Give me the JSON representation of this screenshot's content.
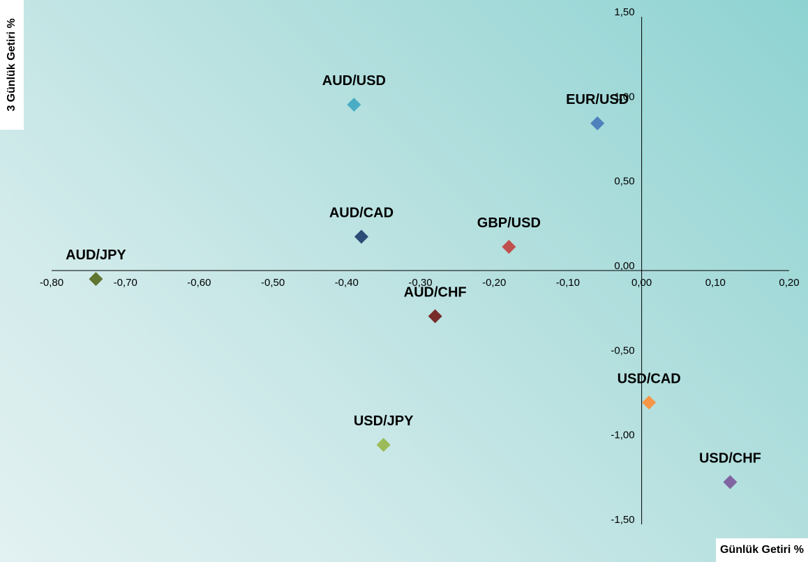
{
  "chart_data": {
    "type": "scatter",
    "xlabel": "Günlük Getiri %",
    "ylabel": "3 Günlük Getiri %",
    "xlim": [
      -0.8,
      0.2
    ],
    "ylim": [
      -1.5,
      1.5
    ],
    "x_ticks": [
      "-0,80",
      "-0,70",
      "-0,60",
      "-0,50",
      "-0,40",
      "-0,30",
      "-0,20",
      "-0,10",
      "0,00",
      "0,10",
      "0,20"
    ],
    "x_tick_values": [
      -0.8,
      -0.7,
      -0.6,
      -0.5,
      -0.4,
      -0.3,
      -0.2,
      -0.1,
      0.0,
      0.1,
      0.2
    ],
    "y_ticks": [
      "1,50",
      "1,00",
      "0,50",
      "0,00",
      "-0,50",
      "-1,00",
      "-1,50"
    ],
    "y_tick_values": [
      1.5,
      1.0,
      0.5,
      0.0,
      -0.5,
      -1.0,
      -1.5
    ],
    "grid": false,
    "legend": "none",
    "points": [
      {
        "label": "AUD/USD",
        "x": -0.39,
        "y": 0.98,
        "color": "#4bacc6"
      },
      {
        "label": "EUR/USD",
        "x": -0.06,
        "y": 0.87,
        "color": "#4f81bd"
      },
      {
        "label": "AUD/CAD",
        "x": -0.38,
        "y": 0.2,
        "color": "#2c4d75"
      },
      {
        "label": "GBP/USD",
        "x": -0.18,
        "y": 0.14,
        "color": "#c0504d"
      },
      {
        "label": "AUD/JPY",
        "x": -0.74,
        "y": -0.05,
        "color": "#5f7530"
      },
      {
        "label": "AUD/CHF",
        "x": -0.28,
        "y": -0.27,
        "color": "#772c2a"
      },
      {
        "label": "USD/CAD",
        "x": 0.01,
        "y": -0.78,
        "color": "#f79646"
      },
      {
        "label": "USD/JPY",
        "x": -0.35,
        "y": -1.03,
        "color": "#9bbb59"
      },
      {
        "label": "USD/CHF",
        "x": 0.12,
        "y": -1.25,
        "color": "#8064a2"
      }
    ]
  }
}
